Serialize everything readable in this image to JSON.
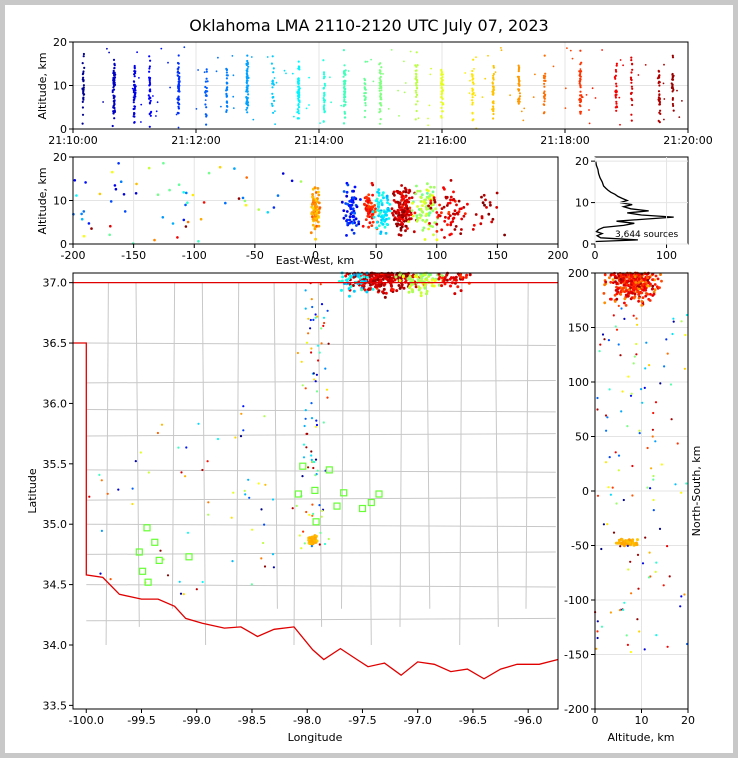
{
  "title": "Oklahoma LMA 2110-2120 UTC July 07, 2023",
  "chart_data": [
    {
      "type": "scatter",
      "panel": "altitude-time",
      "xlabel": "",
      "ylabel": "Altitude, km",
      "xticks": [
        "21:10:00",
        "21:12:00",
        "21:14:00",
        "21:16:00",
        "21:18:00",
        "21:20:00"
      ],
      "yticks": [
        "0",
        "10",
        "20"
      ],
      "xlim": [
        0,
        600
      ],
      "ylim": [
        0,
        20
      ],
      "columns": [
        {
          "t": 10,
          "n": 30
        },
        {
          "t": 40,
          "n": 70
        },
        {
          "t": 60,
          "n": 45
        },
        {
          "t": 75,
          "n": 30
        },
        {
          "t": 103,
          "n": 55
        },
        {
          "t": 130,
          "n": 20
        },
        {
          "t": 150,
          "n": 25
        },
        {
          "t": 170,
          "n": 60
        },
        {
          "t": 195,
          "n": 20
        },
        {
          "t": 220,
          "n": 55
        },
        {
          "t": 245,
          "n": 30
        },
        {
          "t": 265,
          "n": 55
        },
        {
          "t": 285,
          "n": 20
        },
        {
          "t": 300,
          "n": 40
        },
        {
          "t": 335,
          "n": 30
        },
        {
          "t": 360,
          "n": 40
        },
        {
          "t": 390,
          "n": 25
        },
        {
          "t": 410,
          "n": 35
        },
        {
          "t": 435,
          "n": 30
        },
        {
          "t": 460,
          "n": 25
        },
        {
          "t": 495,
          "n": 40
        },
        {
          "t": 530,
          "n": 25
        },
        {
          "t": 545,
          "n": 20
        },
        {
          "t": 572,
          "n": 30
        },
        {
          "t": 585,
          "n": 25
        }
      ],
      "color_scale": "time (blue to dark red)"
    },
    {
      "type": "scatter",
      "panel": "altitude-eastwest",
      "xlabel": "East-West, km",
      "ylabel": "Altitude, km",
      "xticks": [
        "-200",
        "-150",
        "-100",
        "-50",
        "0",
        "50",
        "100",
        "150",
        "200"
      ],
      "yticks": [
        "0",
        "10",
        "20"
      ],
      "xlim": [
        -200,
        200
      ],
      "ylim": [
        0,
        20
      ]
    },
    {
      "type": "line",
      "panel": "altitude-histogram",
      "xlabel": "",
      "ylabel": "",
      "xticks": [
        "0",
        "100"
      ],
      "yticks": [
        "0",
        "10",
        "20"
      ],
      "xlim": [
        0,
        130
      ],
      "ylim": [
        0,
        21
      ],
      "annotation": "3,644 sources",
      "profile": [
        [
          1,
          0.6
        ],
        [
          60,
          1.0
        ],
        [
          8,
          1.5
        ],
        [
          3,
          2.0
        ],
        [
          10,
          2.5
        ],
        [
          2,
          3.0
        ],
        [
          5,
          3.5
        ],
        [
          12,
          4.0
        ],
        [
          40,
          4.5
        ],
        [
          55,
          5.0
        ],
        [
          30,
          5.5
        ],
        [
          70,
          6.0
        ],
        [
          110,
          6.5
        ],
        [
          65,
          7.0
        ],
        [
          45,
          7.5
        ],
        [
          75,
          8.0
        ],
        [
          50,
          8.5
        ],
        [
          40,
          9.0
        ],
        [
          52,
          9.5
        ],
        [
          35,
          10.0
        ],
        [
          45,
          10.5
        ],
        [
          38,
          11.0
        ],
        [
          32,
          11.5
        ],
        [
          28,
          12.0
        ],
        [
          22,
          12.5
        ],
        [
          18,
          13.0
        ],
        [
          15,
          13.5
        ],
        [
          12,
          14.0
        ],
        [
          10,
          15.0
        ],
        [
          7,
          16.0
        ],
        [
          5,
          17.0
        ],
        [
          4,
          18.0
        ],
        [
          2,
          19.0
        ],
        [
          1,
          20.0
        ]
      ]
    },
    {
      "type": "scatter",
      "panel": "plan-view",
      "xlabel": "Longitude",
      "ylabel": "Latitude",
      "xticks": [
        "-100.0",
        "-99.5",
        "-99.0",
        "-98.5",
        "-98.0",
        "-97.5",
        "-97.0",
        "-96.5",
        "-96.0"
      ],
      "yticks": [
        "33.5",
        "34.0",
        "34.5",
        "35.0",
        "35.5",
        "36.0",
        "36.5",
        "37.0"
      ],
      "xlim": [
        -100.12,
        -95.73
      ],
      "ylim": [
        33.47,
        37.08
      ],
      "stations": [
        [
          -98.04,
          35.48
        ],
        [
          -97.8,
          35.45
        ],
        [
          -97.93,
          35.28
        ],
        [
          -97.67,
          35.26
        ],
        [
          -98.08,
          35.25
        ],
        [
          -97.35,
          35.25
        ],
        [
          -97.42,
          35.18
        ],
        [
          -97.73,
          35.15
        ],
        [
          -97.5,
          35.13
        ],
        [
          -97.92,
          35.02
        ],
        [
          -99.45,
          34.97
        ],
        [
          -99.38,
          34.85
        ],
        [
          -99.52,
          34.77
        ],
        [
          -99.34,
          34.7
        ],
        [
          -99.07,
          34.73
        ],
        [
          -99.49,
          34.61
        ],
        [
          -99.44,
          34.52
        ]
      ]
    },
    {
      "type": "scatter",
      "panel": "northsouth-altitude",
      "xlabel": "Altitude, km",
      "ylabel": "North-South, km",
      "xticks": [
        "0",
        "10",
        "20"
      ],
      "yticks": [
        "-200",
        "-150",
        "-100",
        "-50",
        "0",
        "50",
        "100",
        "150",
        "200"
      ],
      "xlim": [
        0,
        20
      ],
      "ylim": [
        -200,
        200
      ]
    }
  ]
}
